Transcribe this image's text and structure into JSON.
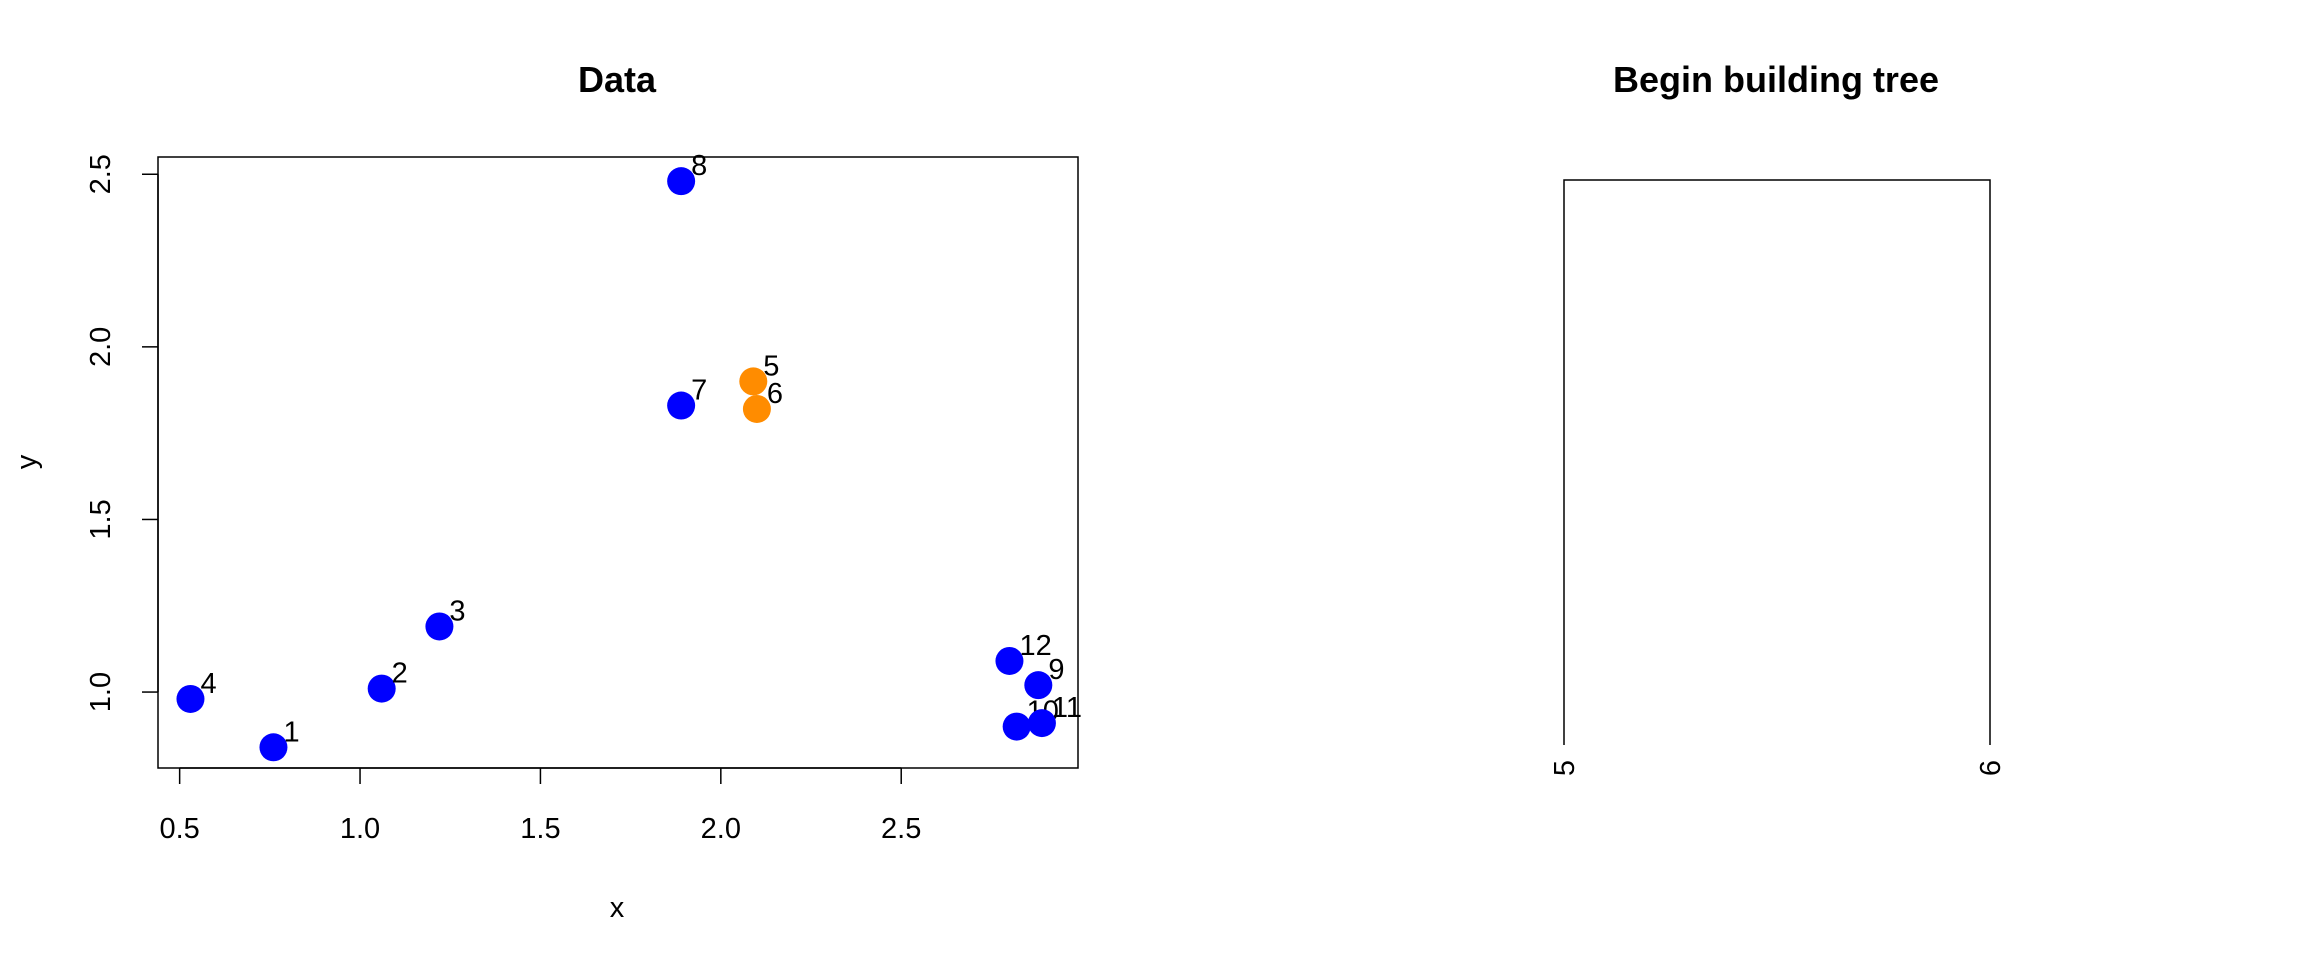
{
  "chart_data": [
    {
      "type": "scatter",
      "title": "Data",
      "xlabel": "x",
      "ylabel": "y",
      "xlim": [
        0.44,
        2.99
      ],
      "ylim": [
        0.78,
        2.55
      ],
      "xticks": [
        "0.5",
        "1.0",
        "1.5",
        "2.0",
        "2.5"
      ],
      "yticks": [
        "1.0",
        "1.5",
        "2.0",
        "2.5"
      ],
      "grid": false,
      "colors": {
        "default": "#0000FF",
        "highlight": "#FF8C00"
      },
      "points": [
        {
          "label": "1",
          "x": 0.76,
          "y": 0.84,
          "color": "#0000FF"
        },
        {
          "label": "2",
          "x": 1.06,
          "y": 1.01,
          "color": "#0000FF"
        },
        {
          "label": "3",
          "x": 1.22,
          "y": 1.19,
          "color": "#0000FF"
        },
        {
          "label": "4",
          "x": 0.53,
          "y": 0.98,
          "color": "#0000FF"
        },
        {
          "label": "5",
          "x": 2.09,
          "y": 1.9,
          "color": "#FF8C00"
        },
        {
          "label": "6",
          "x": 2.1,
          "y": 1.82,
          "color": "#FF8C00"
        },
        {
          "label": "7",
          "x": 1.89,
          "y": 1.83,
          "color": "#0000FF"
        },
        {
          "label": "8",
          "x": 1.89,
          "y": 2.48,
          "color": "#0000FF"
        },
        {
          "label": "9",
          "x": 2.88,
          "y": 1.02,
          "color": "#0000FF"
        },
        {
          "label": "10",
          "x": 2.82,
          "y": 0.9,
          "color": "#0000FF"
        },
        {
          "label": "11",
          "x": 2.89,
          "y": 0.91,
          "color": "#0000FF"
        },
        {
          "label": "12",
          "x": 2.8,
          "y": 1.09,
          "color": "#0000FF"
        }
      ]
    },
    {
      "type": "dendrogram",
      "title": "Begin building tree",
      "leaves": [
        "5",
        "6"
      ],
      "merges": [
        {
          "left": "5",
          "right": "6"
        }
      ]
    }
  ]
}
